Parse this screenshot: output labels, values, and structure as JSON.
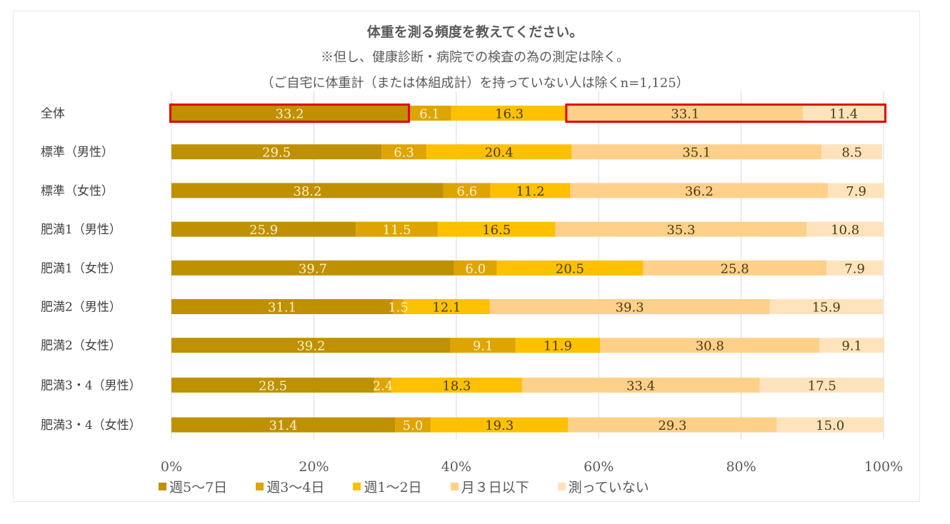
{
  "chart_data": {
    "type": "bar",
    "orientation": "horizontal",
    "stacked": "percent",
    "title": "体重を測る頻度を教えてください。",
    "subtitle": "※但し、健康診断・病院での検査の為の測定は除く。",
    "note": "（ご自宅に体重計（または体組成計）を持っていない人は除くn=1,125）",
    "xlabel": "",
    "ylabel": "",
    "xlim": [
      0,
      100
    ],
    "x_ticks": [
      "0%",
      "20%",
      "40%",
      "60%",
      "80%",
      "100%"
    ],
    "grid": true,
    "legend_position": "bottom",
    "categories": [
      "全体",
      "標準（男性）",
      "標準（女性）",
      "肥満1（男性）",
      "肥満1（女性）",
      "肥満2（男性）",
      "肥満2（女性）",
      "肥満3・4（男性）",
      "肥満3・4（女性）"
    ],
    "series": [
      {
        "name": "週5〜7日",
        "color": "#BF9000",
        "label_color": "#FFF2CC",
        "values": [
          33.2,
          29.5,
          38.2,
          25.9,
          39.7,
          31.1,
          39.2,
          28.5,
          31.4
        ]
      },
      {
        "name": "週3〜4日",
        "color": "#DEA400",
        "label_color": "#FFF2CC",
        "values": [
          6.1,
          6.3,
          6.6,
          11.5,
          6.0,
          1.5,
          9.1,
          2.4,
          5.0
        ]
      },
      {
        "name": "週1〜2日",
        "color": "#FFC000",
        "label_color": "#4A3B12",
        "values": [
          16.3,
          20.4,
          11.2,
          16.5,
          20.5,
          12.1,
          11.9,
          18.3,
          19.3
        ]
      },
      {
        "name": "月３日以下",
        "color": "#FFD08A",
        "label_color": "#4A3B12",
        "values": [
          33.1,
          35.1,
          36.2,
          35.3,
          25.8,
          39.3,
          30.8,
          33.4,
          29.3
        ]
      },
      {
        "name": "測っていない",
        "color": "#FFE3BD",
        "label_color": "#4A3B12",
        "values": [
          11.4,
          8.5,
          7.9,
          10.8,
          7.9,
          15.9,
          9.1,
          17.5,
          15.0
        ]
      }
    ],
    "highlights": [
      {
        "category": "全体",
        "series": [
          "週5〜7日"
        ],
        "color": "#E00000"
      },
      {
        "category": "全体",
        "series": [
          "月３日以下",
          "測っていない"
        ],
        "color": "#E00000"
      }
    ]
  }
}
